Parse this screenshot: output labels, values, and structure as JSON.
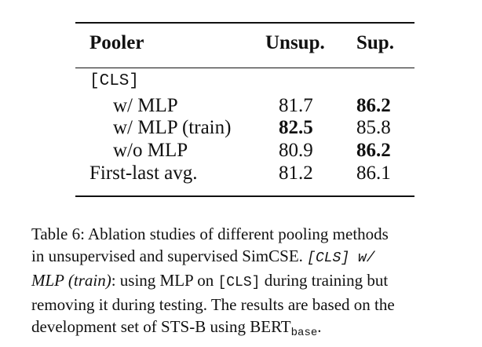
{
  "table": {
    "headers": {
      "pooler": "Pooler",
      "unsup": "Unsup.",
      "sup": "Sup."
    },
    "group_label": "[CLS]",
    "rows": [
      {
        "label": "w/ MLP",
        "unsup": "81.7",
        "sup": "86.2"
      },
      {
        "label": "w/ MLP (train)",
        "unsup": "82.5",
        "sup": "85.8"
      },
      {
        "label": "w/o MLP",
        "unsup": "80.9",
        "sup": "86.2"
      },
      {
        "label": "First-last avg.",
        "unsup": "81.2",
        "sup": "86.1"
      }
    ]
  },
  "caption": {
    "line1": "Table 6: Ablation studies of different pooling methods",
    "line2_a": "in unsupervised and supervised SimCSE. ",
    "line2_b": "[CLS] w/",
    "line3_a": "MLP (train)",
    "line3_b": ": using MLP on ",
    "line3_c": "[CLS]",
    "line3_d": " during training but",
    "line4": "removing it during testing. The results are based on the",
    "line5_a": "development set of STS-B using BERT",
    "line5_sub": "base",
    "line5_b": "."
  }
}
